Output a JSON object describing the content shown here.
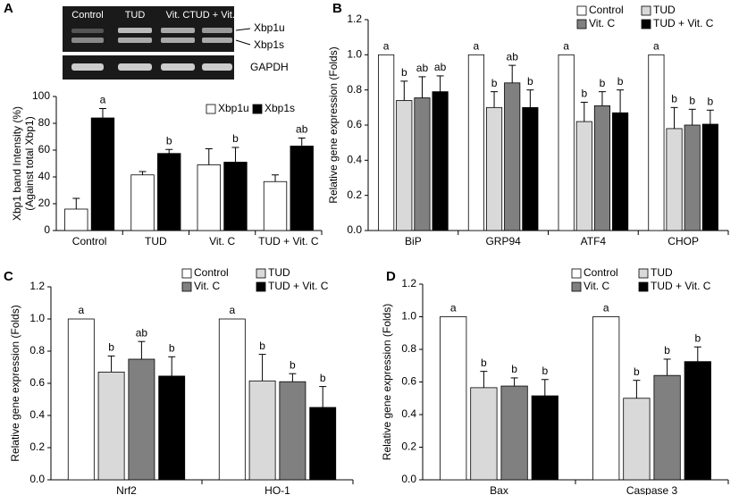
{
  "panel_labels": [
    "A",
    "B",
    "C",
    "D"
  ],
  "gel": {
    "lanes": [
      "Control",
      "TUD",
      "Vit. C",
      "TUD + Vit. C"
    ],
    "bands": [
      "Xbp1u",
      "Xbp1s"
    ],
    "loading_control": "GAPDH"
  },
  "chart_data": [
    {
      "type": "bar",
      "y_label": [
        "Xbp1 band Intensity (%)",
        "(Against total Xbp1)"
      ],
      "categories": [
        "Control",
        "TUD",
        "Vit. C",
        "TUD + Vit. C"
      ],
      "series": [
        {
          "name": "Xbp1u",
          "color": "#ffffff",
          "values": [
            16,
            41.5,
            49,
            36.5
          ],
          "errors": [
            8,
            2.5,
            12,
            5
          ]
        },
        {
          "name": "Xbp1s",
          "color": "#000000",
          "values": [
            84,
            57.5,
            51,
            63
          ],
          "errors": [
            7,
            3,
            11,
            6
          ],
          "annotations": [
            "a",
            "b",
            "b",
            "ab"
          ]
        }
      ],
      "ylim": [
        0,
        100
      ],
      "yticks": [
        0,
        20,
        40,
        60,
        80,
        100
      ],
      "legend": "upper right"
    },
    {
      "type": "bar",
      "y_label": "Relative gene expression (Folds)",
      "categories": [
        "BiP",
        "GRP94",
        "ATF4",
        "CHOP"
      ],
      "series": [
        {
          "name": "Control",
          "color": "#ffffff",
          "values": [
            1,
            1,
            1,
            1
          ],
          "annotations": [
            "a",
            "a",
            "a",
            "a"
          ]
        },
        {
          "name": "TUD",
          "color": "#d9d9d9",
          "values": [
            0.74,
            0.7,
            0.62,
            0.58
          ],
          "errors": [
            0.11,
            0.09,
            0.11,
            0.12
          ],
          "annotations": [
            "b",
            "b",
            "b",
            "b"
          ]
        },
        {
          "name": "Vit. C",
          "color": "#808080",
          "values": [
            0.755,
            0.84,
            0.71,
            0.6
          ],
          "errors": [
            0.12,
            0.1,
            0.08,
            0.09
          ],
          "annotations": [
            "ab",
            "ab",
            "b",
            "b"
          ]
        },
        {
          "name": "TUD + Vit. C",
          "color": "#000000",
          "values": [
            0.79,
            0.7,
            0.67,
            0.605
          ],
          "errors": [
            0.09,
            0.1,
            0.13,
            0.08
          ],
          "annotations": [
            "ab",
            "b",
            "b",
            "b"
          ]
        }
      ],
      "ylim": [
        0,
        1.2
      ],
      "yticks": [
        {
          "value": 0,
          "label": "0.0"
        },
        0.2,
        0.4,
        0.6,
        0.8,
        {
          "value": 1,
          "label": "1.0"
        },
        1.2
      ],
      "legend": "upper right"
    },
    {
      "type": "bar",
      "y_label": "Relative gene expression (Folds)",
      "categories": [
        "Nrf2",
        "HO-1"
      ],
      "series": [
        {
          "name": "Control",
          "color": "#ffffff",
          "values": [
            1,
            1
          ],
          "annotations": [
            "a",
            "a"
          ]
        },
        {
          "name": "TUD",
          "color": "#d9d9d9",
          "values": [
            0.67,
            0.615
          ],
          "errors": [
            0.1,
            0.165
          ],
          "annotations": [
            "b",
            "b"
          ]
        },
        {
          "name": "Vit. C",
          "color": "#808080",
          "values": [
            0.75,
            0.61
          ],
          "errors": [
            0.11,
            0.05
          ],
          "annotations": [
            "ab",
            "b"
          ]
        },
        {
          "name": "TUD + Vit. C",
          "color": "#000000",
          "values": [
            0.645,
            0.45
          ],
          "errors": [
            0.12,
            0.13
          ],
          "annotations": [
            "b",
            "b"
          ]
        }
      ],
      "ylim": [
        0,
        1.2
      ],
      "yticks": [
        {
          "value": 0,
          "label": "0.0"
        },
        0.2,
        0.4,
        0.6,
        0.8,
        {
          "value": 1,
          "label": "1.0"
        },
        1.2
      ],
      "legend": "upper right"
    },
    {
      "type": "bar",
      "y_label": "Relative gene expression (Folds)",
      "categories": [
        "Bax",
        "Caspase 3"
      ],
      "series": [
        {
          "name": "Control",
          "color": "#ffffff",
          "values": [
            1,
            1
          ],
          "annotations": [
            "a",
            "a"
          ]
        },
        {
          "name": "TUD",
          "color": "#d9d9d9",
          "values": [
            0.565,
            0.5
          ],
          "errors": [
            0.1,
            0.11
          ],
          "annotations": [
            "b",
            "b"
          ]
        },
        {
          "name": "Vit. C",
          "color": "#808080",
          "values": [
            0.575,
            0.64
          ],
          "errors": [
            0.05,
            0.1
          ],
          "annotations": [
            "b",
            "b"
          ]
        },
        {
          "name": "TUD + Vit. C",
          "color": "#000000",
          "values": [
            0.515,
            0.725
          ],
          "errors": [
            0.1,
            0.09
          ],
          "annotations": [
            "b",
            "b"
          ]
        }
      ],
      "ylim": [
        0,
        1.2
      ],
      "yticks": [
        {
          "value": 0,
          "label": "0.0"
        },
        0.2,
        0.4,
        0.6,
        0.8,
        {
          "value": 1,
          "label": "1.0"
        },
        1.2
      ],
      "legend": "upper right"
    }
  ]
}
